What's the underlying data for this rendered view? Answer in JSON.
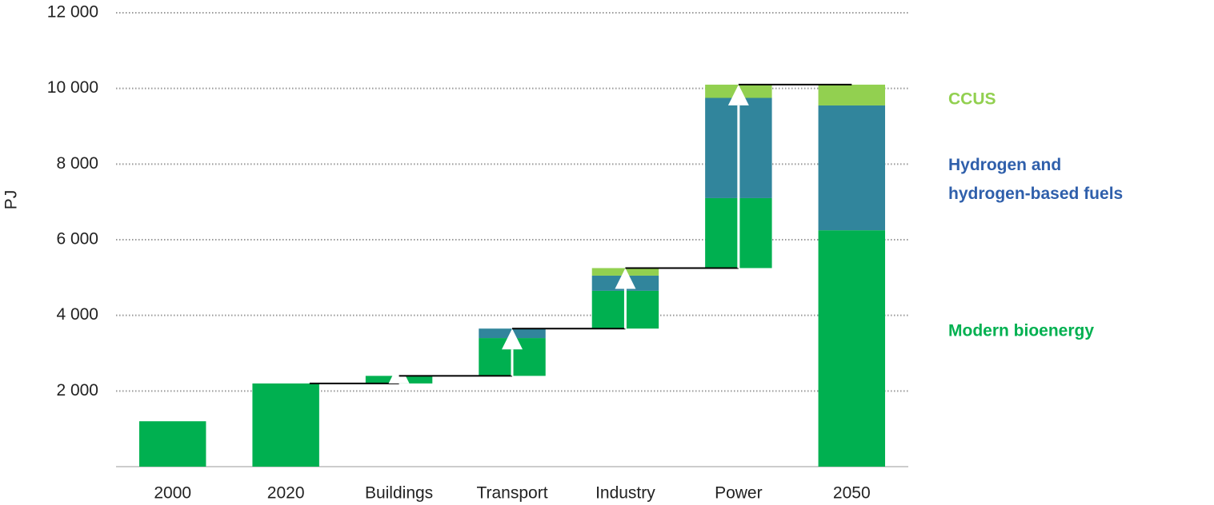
{
  "chart_data": {
    "type": "waterfall",
    "y_label": "PJ",
    "categories": [
      "2000",
      "2020",
      "Buildings",
      "Transport",
      "Industry",
      "Power",
      "2050"
    ],
    "measures": [
      "absolute",
      "absolute",
      "relative",
      "relative",
      "relative",
      "relative",
      "absolute"
    ],
    "series": [
      {
        "name": "Modern bioenergy",
        "color": "#00b050",
        "label_color": "#00b050",
        "values": [
          1200,
          2200,
          200,
          1000,
          1000,
          1850,
          6250
        ]
      },
      {
        "name": "Hydrogen and hydrogen-based fuels",
        "color": "#31859c",
        "label_color": "#2f5fab",
        "values": [
          null,
          null,
          null,
          250,
          400,
          2650,
          3300
        ]
      },
      {
        "name": "CCUS",
        "color": "#92d050",
        "label_color": "#92d050",
        "values": [
          null,
          null,
          null,
          null,
          200,
          350,
          550
        ]
      }
    ],
    "ylim": [
      0,
      12000
    ],
    "yticks": [
      {
        "value": 2000,
        "label": "2 000"
      },
      {
        "value": 4000,
        "label": "4 000"
      },
      {
        "value": 6000,
        "label": "6 000"
      },
      {
        "value": 8000,
        "label": "8 000"
      },
      {
        "value": 10000,
        "label": "10 000"
      },
      {
        "value": 12000,
        "label": "12 000"
      }
    ],
    "grid": true
  }
}
